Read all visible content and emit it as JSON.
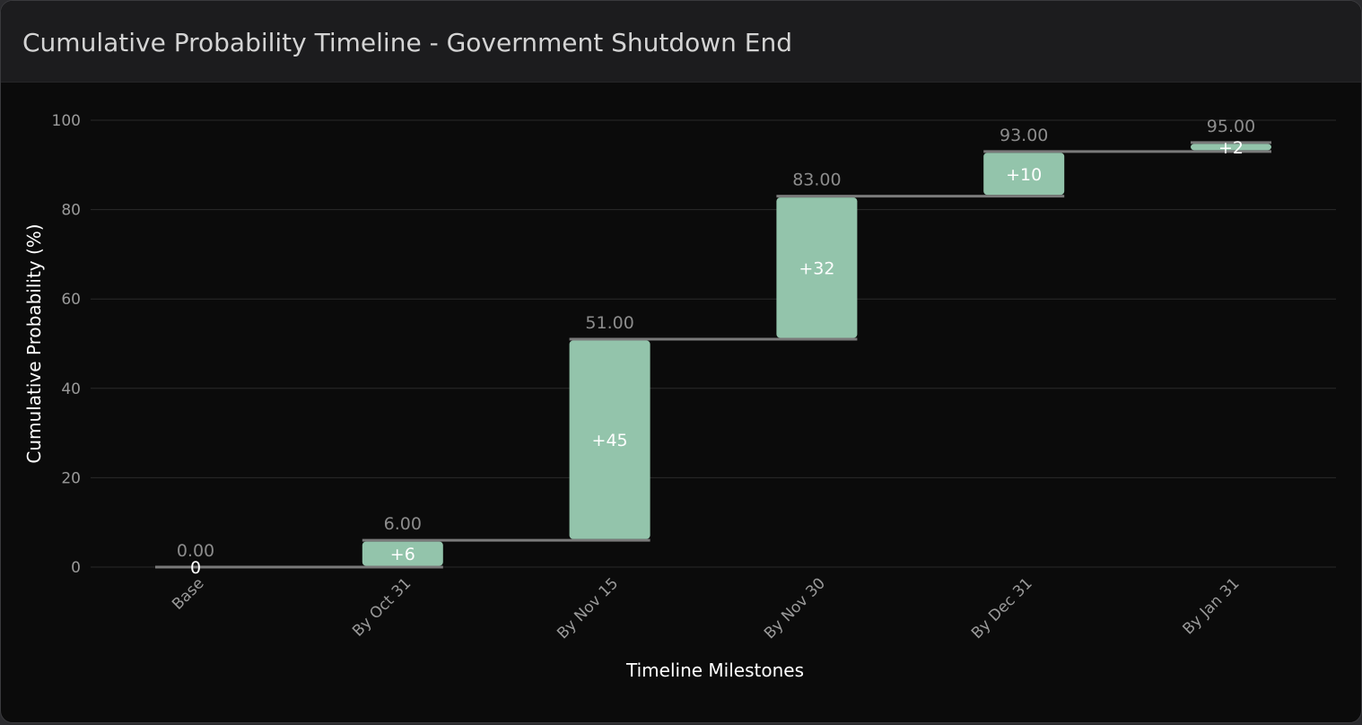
{
  "header": {
    "title": "Cumulative Probability Timeline - Government Shutdown End"
  },
  "colors": {
    "background": "#0b0b0b",
    "header_background": "#1c1c1e",
    "bar_fill": "#93c4ab",
    "connector": "#7a7a7a",
    "grid": "#2a2a2a",
    "tick_text": "#9a9a9a",
    "axis_title": "#ffffff",
    "total_label": "#8c8c8c",
    "delta_label": "#ffffff"
  },
  "chart_data": {
    "type": "waterfall",
    "title": "Cumulative Probability Timeline - Government Shutdown End",
    "xlabel": "Timeline Milestones",
    "ylabel": "Cumulative Probability (%)",
    "ylim": [
      0,
      100
    ],
    "yticks": [
      "0",
      "20",
      "40",
      "60",
      "80",
      "100"
    ],
    "grid": true,
    "categories": [
      "Base",
      "By Oct 31",
      "By Nov 15",
      "By Nov 30",
      "By Dec 31",
      "By Jan 31"
    ],
    "increments": [
      0,
      6,
      45,
      32,
      10,
      2
    ],
    "cumulative": [
      0,
      6,
      51,
      83,
      93,
      95
    ],
    "delta_labels": [
      "0",
      "+6",
      "+45",
      "+32",
      "+10",
      "+2"
    ],
    "total_labels": [
      "0.00",
      "6.00",
      "51.00",
      "83.00",
      "93.00",
      "95.00"
    ]
  }
}
